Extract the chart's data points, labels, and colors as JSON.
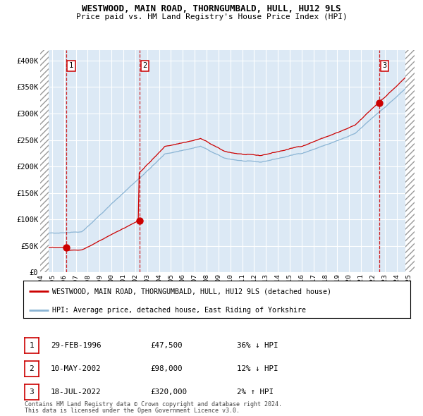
{
  "title": "WESTWOOD, MAIN ROAD, THORNGUMBALD, HULL, HU12 9LS",
  "subtitle": "Price paid vs. HM Land Registry's House Price Index (HPI)",
  "xlim": [
    1994.0,
    2025.5
  ],
  "ylim": [
    0,
    420000
  ],
  "yticks": [
    0,
    50000,
    100000,
    150000,
    200000,
    250000,
    300000,
    350000,
    400000
  ],
  "ytick_labels": [
    "£0",
    "£50K",
    "£100K",
    "£150K",
    "£200K",
    "£250K",
    "£300K",
    "£350K",
    "£400K"
  ],
  "background_color": "#ffffff",
  "plot_bg_color": "#dce9f5",
  "grid_color": "#ffffff",
  "sale_color": "#cc0000",
  "hpi_color": "#8ab4d4",
  "vline_color": "#cc0000",
  "transactions": [
    {
      "date_num": 1996.17,
      "price": 47500,
      "label": "1"
    },
    {
      "date_num": 2002.36,
      "price": 98000,
      "label": "2"
    },
    {
      "date_num": 2022.54,
      "price": 320000,
      "label": "3"
    }
  ],
  "legend_entries": [
    {
      "label": "WESTWOOD, MAIN ROAD, THORNGUMBALD, HULL, HU12 9LS (detached house)",
      "color": "#cc0000"
    },
    {
      "label": "HPI: Average price, detached house, East Riding of Yorkshire",
      "color": "#8ab4d4"
    }
  ],
  "table_rows": [
    {
      "num": "1",
      "date": "29-FEB-1996",
      "price": "£47,500",
      "hpi": "36% ↓ HPI"
    },
    {
      "num": "2",
      "date": "10-MAY-2002",
      "price": "£98,000",
      "hpi": "12% ↓ HPI"
    },
    {
      "num": "3",
      "date": "18-JUL-2022",
      "price": "£320,000",
      "hpi": "2% ↑ HPI"
    }
  ],
  "footer": [
    "Contains HM Land Registry data © Crown copyright and database right 2024.",
    "This data is licensed under the Open Government Licence v3.0."
  ]
}
